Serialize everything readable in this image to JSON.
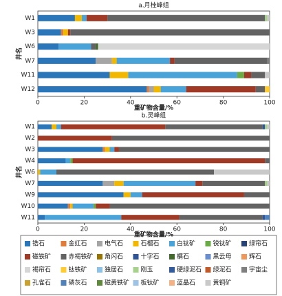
{
  "chart_data": [
    {
      "type": "bar",
      "title": "a.月桂峰组",
      "xlabel": "重矿物含量/%",
      "ylabel": "井名",
      "categories": [
        "W1",
        "W3",
        "W6",
        "W7",
        "W11",
        "W12"
      ],
      "xlim": [
        0,
        100
      ],
      "xticks": [
        0,
        20,
        40,
        60,
        80,
        100
      ],
      "series": [
        {
          "name": "锆石",
          "color": "#2b76b8",
          "values": [
            16,
            10,
            9,
            25,
            31,
            47
          ]
        },
        {
          "name": "金红石",
          "color": "#e07b39",
          "values": [
            0,
            1,
            0,
            0,
            0,
            1
          ]
        },
        {
          "name": "电气石",
          "color": "#a5a5a5",
          "values": [
            0,
            0,
            0,
            7,
            0,
            2
          ]
        },
        {
          "name": "石榴石",
          "color": "#f2b800",
          "values": [
            3,
            2,
            0,
            2,
            8,
            3
          ]
        },
        {
          "name": "白钛矿",
          "color": "#4aa3d8",
          "values": [
            2,
            0,
            14,
            23,
            47,
            11
          ]
        },
        {
          "name": "锐钛矿",
          "color": "#6aab46",
          "values": [
            0,
            0,
            0,
            0,
            3,
            0
          ]
        },
        {
          "name": "绿帘石",
          "color": "#264478",
          "values": [
            0,
            0,
            0,
            0,
            0,
            0
          ]
        },
        {
          "name": "磁铁矿",
          "color": "#9e3a26",
          "values": [
            9,
            1,
            0,
            2,
            3,
            30
          ]
        },
        {
          "name": "赤褐铁矿",
          "color": "#636363",
          "values": [
            68,
            86,
            2,
            40,
            6,
            4
          ]
        },
        {
          "name": "角闪石",
          "color": "#997300",
          "values": [
            0,
            0,
            0,
            0,
            0,
            0
          ]
        },
        {
          "name": "十字石",
          "color": "#2f5597",
          "values": [
            0,
            0,
            0,
            0,
            0,
            0
          ]
        },
        {
          "name": "榍石",
          "color": "#43682b",
          "values": [
            0,
            0,
            1,
            0,
            0,
            0
          ]
        },
        {
          "name": "黑云母",
          "color": "#698ed0",
          "values": [
            0,
            0,
            0,
            0,
            0,
            0
          ]
        },
        {
          "name": "辉石",
          "color": "#f1975a",
          "values": [
            0,
            0,
            0,
            0,
            0,
            0
          ]
        },
        {
          "name": "褐帘石",
          "color": "#d6d6d6",
          "values": [
            0,
            0,
            74,
            0,
            0,
            0
          ]
        },
        {
          "name": "钛铁矿",
          "color": "#ffcd33",
          "values": [
            0,
            0,
            0,
            0,
            0,
            2
          ]
        },
        {
          "name": "独居石",
          "color": "#8cc2e8",
          "values": [
            0,
            0,
            0,
            0,
            0,
            0
          ]
        },
        {
          "name": "刚玉",
          "color": "#a9d18e",
          "values": [
            1,
            0,
            0,
            0,
            0,
            0
          ]
        },
        {
          "name": "硬绿泥石",
          "color": "#335b9a",
          "values": [
            0,
            0,
            0,
            0,
            0,
            0
          ]
        },
        {
          "name": "绿泥石",
          "color": "#c05a2a",
          "values": [
            0,
            0,
            0,
            0,
            0,
            0
          ]
        },
        {
          "name": "宇宙尘",
          "color": "#7f7f7f",
          "values": [
            0,
            0,
            0,
            1,
            0,
            0
          ]
        },
        {
          "name": "孔雀石",
          "color": "#c9a232",
          "values": [
            0,
            0,
            0,
            0,
            0,
            0
          ]
        },
        {
          "name": "磷灰石",
          "color": "#4f82bd",
          "values": [
            0,
            0,
            0,
            0,
            0,
            0
          ]
        },
        {
          "name": "磁黄铁矿",
          "color": "#5e8b3a",
          "values": [
            0,
            0,
            0,
            0,
            0,
            0
          ]
        },
        {
          "name": "板钛矿",
          "color": "#9dc3e6",
          "values": [
            0,
            0,
            0,
            0,
            0,
            0
          ]
        },
        {
          "name": "蓝晶石",
          "color": "#f4b183",
          "values": [
            0,
            0,
            0,
            0,
            0,
            0
          ]
        },
        {
          "name": "黄铜矿",
          "color": "#c9c9c9",
          "values": [
            1,
            0,
            0,
            0,
            2,
            0
          ]
        }
      ]
    },
    {
      "type": "bar",
      "title": "b.灵峰组",
      "xlabel": "重矿物含量/%",
      "ylabel": "井名",
      "categories": [
        "W1",
        "W2",
        "W3",
        "W4",
        "W6",
        "W7",
        "W9",
        "W10",
        "W11"
      ],
      "xlim": [
        0,
        100
      ],
      "xticks": [
        0,
        20,
        40,
        60,
        80,
        100
      ],
      "series": [
        {
          "values": [
            6,
            0,
            28,
            12,
            0,
            28,
            37,
            13,
            3
          ]
        },
        {
          "values": [
            0,
            0,
            1,
            0,
            0,
            0,
            0,
            1,
            0
          ]
        },
        {
          "values": [
            0,
            0,
            0,
            0,
            0,
            5,
            0,
            0,
            0
          ]
        },
        {
          "values": [
            2,
            0,
            2,
            0,
            1,
            4,
            3,
            1,
            0
          ]
        },
        {
          "values": [
            2,
            0,
            2,
            2,
            7,
            31,
            5,
            9,
            33
          ]
        },
        {
          "values": [
            0,
            0,
            0,
            1,
            0,
            0,
            0,
            1,
            0
          ]
        },
        {
          "values": [
            0,
            0,
            0,
            0,
            0,
            0,
            0,
            0,
            0
          ]
        },
        {
          "values": [
            45,
            32,
            2,
            83,
            0,
            3,
            44,
            6,
            25
          ]
        },
        {
          "values": [
            42,
            68,
            65,
            2,
            68,
            27,
            11,
            69,
            36
          ]
        },
        {
          "values": [
            0,
            0,
            0,
            0,
            0,
            0,
            0,
            0,
            0
          ]
        },
        {
          "values": [
            1,
            0,
            0,
            0,
            0,
            0,
            0,
            0,
            1
          ]
        },
        {
          "values": [
            0,
            0,
            0,
            0,
            0,
            0,
            0,
            0,
            0
          ]
        },
        {
          "values": [
            0,
            0,
            0,
            0,
            0,
            0,
            0,
            0,
            0
          ]
        },
        {
          "values": [
            0,
            0,
            0,
            0,
            0,
            0,
            0,
            0,
            0
          ]
        },
        {
          "values": [
            0,
            0,
            0,
            0,
            0,
            0,
            0,
            0,
            0
          ]
        },
        {
          "values": [
            0,
            0,
            0,
            0,
            0,
            0,
            0,
            0,
            0
          ]
        },
        {
          "values": [
            0,
            0,
            0,
            0,
            0,
            0,
            0,
            0,
            0
          ]
        },
        {
          "values": [
            1,
            0,
            0,
            0,
            0,
            1,
            0,
            0,
            0
          ]
        },
        {
          "values": [
            0,
            0,
            0,
            0,
            0,
            0,
            0,
            0,
            0
          ]
        },
        {
          "values": [
            0,
            0,
            0,
            0,
            0,
            0,
            0,
            0,
            0
          ]
        },
        {
          "values": [
            0,
            0,
            0,
            0,
            0,
            0,
            0,
            0,
            0
          ]
        },
        {
          "values": [
            0,
            0,
            0,
            0,
            0,
            0,
            0,
            0,
            0
          ]
        },
        {
          "values": [
            0,
            0,
            0,
            0,
            0,
            0,
            0,
            0,
            2
          ]
        },
        {
          "values": [
            0,
            0,
            0,
            0,
            0,
            0,
            0,
            0,
            0
          ]
        },
        {
          "values": [
            0,
            0,
            0,
            0,
            0,
            0,
            0,
            0,
            0
          ]
        },
        {
          "values": [
            0,
            0,
            0,
            0,
            0,
            0,
            0,
            0,
            0
          ]
        },
        {
          "values": [
            1,
            0,
            0,
            0,
            24,
            1,
            0,
            0,
            0
          ]
        }
      ]
    }
  ]
}
